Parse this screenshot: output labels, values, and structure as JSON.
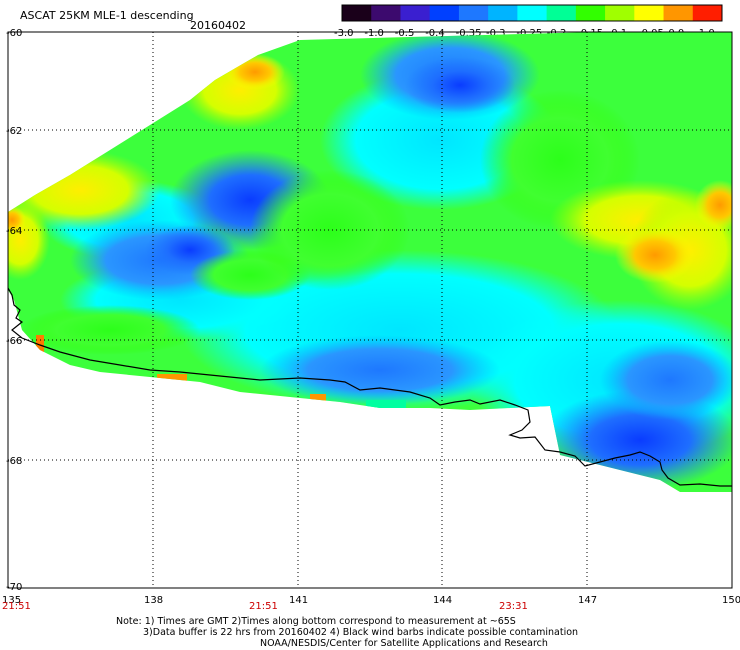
{
  "title": "ASCAT 25KM MLE-1 descending",
  "date": "20160402",
  "colorbar": {
    "ticks": [
      "-3.0",
      "-1.0",
      "-0.5",
      "-0.4",
      "-0.35",
      "-0.3",
      "-0.25",
      "-0.2",
      "-0.15",
      "-0.1",
      "-0.05",
      "0.0",
      "1.0"
    ],
    "colors": [
      "#1a001a",
      "#3c0a6e",
      "#3a1fd0",
      "#0040ff",
      "#1e78ff",
      "#00b4ff",
      "#00ffff",
      "#00ff96",
      "#32ff00",
      "#a0ff00",
      "#ffff00",
      "#ff9600",
      "#ff1e00"
    ]
  },
  "axes": {
    "lon_labels": [
      "135",
      "138",
      "141",
      "144",
      "147",
      "150"
    ],
    "lat_labels": [
      "-60",
      "-62",
      "-64",
      "-66",
      "-68",
      "-70"
    ]
  },
  "times": [
    "21:51",
    "21:51",
    "23:31"
  ],
  "notes": {
    "line1": "Note: 1) Times are GMT 2)Times along bottom correspond to measurement at ~65S",
    "line2": "3)Data buffer is 22 hrs from 20160402 4) Black wind barbs indicate possible contamination",
    "line3": "NOAA/NESDIS/Center for Satellite Applications and Research"
  },
  "colors": {
    "background": "#ffffff",
    "coastline": "#000000",
    "time_labels": "#cc0000"
  }
}
